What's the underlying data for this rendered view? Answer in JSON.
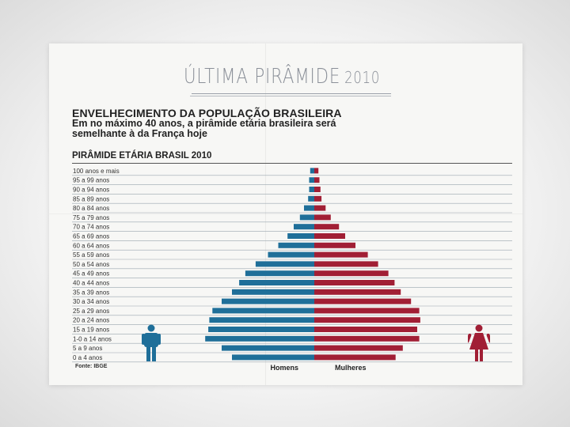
{
  "slide": {
    "title": "ÚLTIMA PIRÂMIDE",
    "year": "2010"
  },
  "article": {
    "headline": "ENVELHECIMENTO DA POPULAÇÃO BRASILEIRA",
    "subhead": "Em no máximo 40 anos, a pirâmide etária brasileira será semelhante à da França hoje",
    "section_title": "PIRÂMIDE ETÁRIA  BRASIL 2010",
    "source": "Fonte: IBGE"
  },
  "colors": {
    "men": "#1f6f99",
    "women": "#a11f35",
    "grid": "#9aa6ae",
    "text": "#222222"
  },
  "icons": {
    "men": "male-figure-icon",
    "women": "female-figure-icon"
  },
  "chart_data": {
    "type": "bar",
    "orientation": "horizontal-pyramid",
    "categories": [
      "100 anos e mais",
      "95 a 99 anos",
      "90 a 94 anos",
      "85 a 89 anos",
      "80 a 84 anos",
      "75 a 79 anos",
      "70 a 74 anos",
      "65 a 69 anos",
      "60 a 64 anos",
      "55 a 59 anos",
      "50 a 54 anos",
      "45 a 49 anos",
      "40 a 44 anos",
      "35 a 39 anos",
      "30 a 34 anos",
      "25 a 29 anos",
      "20 a 24 anos",
      "15 a 19 anos",
      "1-0 a 14 anos",
      "5 a 9 anos",
      "0 a 4 anos"
    ],
    "series": [
      {
        "name": "Homens",
        "values": [
          0.4,
          0.5,
          0.5,
          0.6,
          1.0,
          1.4,
          2.0,
          2.6,
          3.5,
          4.5,
          5.7,
          6.7,
          7.3,
          8.0,
          9.0,
          9.9,
          10.2,
          10.3,
          10.6,
          9.0,
          8.0
        ]
      },
      {
        "name": "Mulheres",
        "values": [
          0.4,
          0.5,
          0.6,
          0.7,
          1.1,
          1.6,
          2.4,
          3.0,
          4.0,
          5.2,
          6.2,
          7.2,
          7.8,
          8.4,
          9.4,
          10.2,
          10.3,
          10.0,
          10.2,
          8.6,
          7.9
        ]
      }
    ],
    "title": "PIRÂMIDE ETÁRIA  BRASIL 2010",
    "grid": true,
    "legend": "bottom"
  }
}
